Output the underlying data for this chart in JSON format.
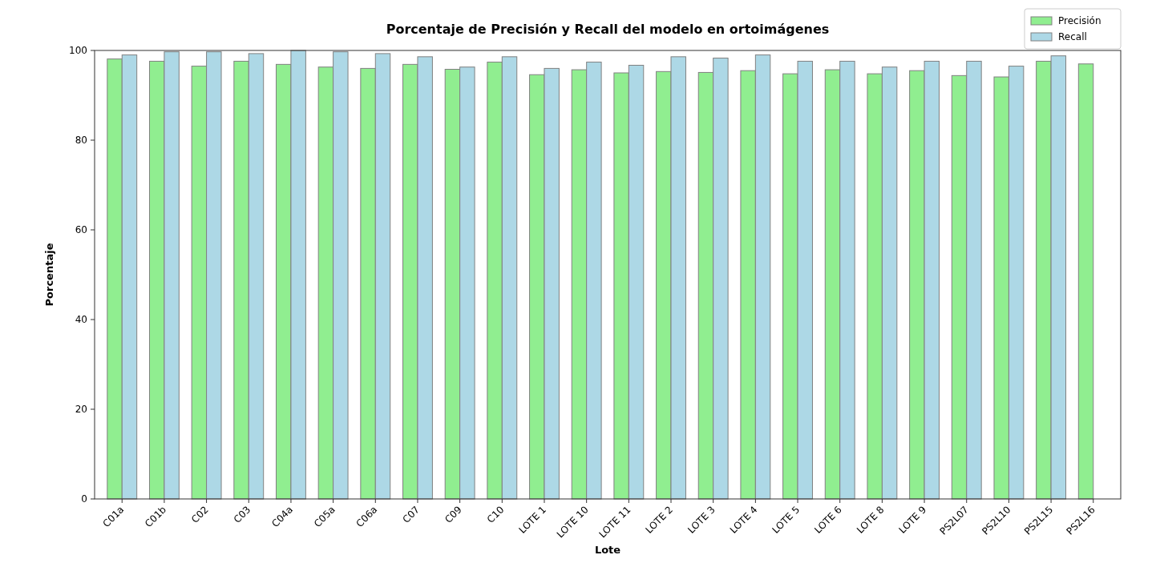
{
  "chart_data": {
    "type": "bar",
    "title": "Porcentaje de Precisión y Recall del modelo en ortoimágenes",
    "xlabel": "Lote",
    "ylabel": "Porcentaje",
    "categories": [
      "C01a",
      "C01b",
      "C02",
      "C03",
      "C04a",
      "C05a",
      "C06a",
      "C07",
      "C09",
      "C10",
      "LOTE 1",
      "LOTE 10",
      "LOTE 11",
      "LOTE 2",
      "LOTE 3",
      "LOTE 4",
      "LOTE 5",
      "LOTE 6",
      "LOTE 8",
      "LOTE 9",
      "PS2L07",
      "PS2L10",
      "PS2L15",
      "PS2L16"
    ],
    "series": [
      {
        "name": "Precisión",
        "color": "#90ee90",
        "values": [
          98.1,
          97.6,
          96.5,
          97.6,
          96.9,
          96.3,
          96.0,
          96.9,
          95.8,
          97.4,
          94.6,
          95.7,
          95.0,
          95.3,
          95.1,
          95.5,
          94.8,
          95.7,
          94.8,
          95.5,
          94.4,
          94.1,
          97.6,
          97.0
        ]
      },
      {
        "name": "Recall",
        "color": "#add8e6",
        "values": [
          99.0,
          99.7,
          99.7,
          99.3,
          100,
          99.7,
          99.3,
          98.6,
          96.3,
          98.6,
          96.0,
          97.4,
          96.7,
          98.6,
          98.3,
          99.0,
          97.6,
          97.6,
          96.3,
          97.6,
          97.6,
          96.5,
          98.8,
          null
        ]
      }
    ],
    "ylim": [
      0,
      100
    ],
    "yticks": [
      0,
      20,
      40,
      60,
      80,
      100
    ],
    "legend": "top right",
    "grid": false
  }
}
